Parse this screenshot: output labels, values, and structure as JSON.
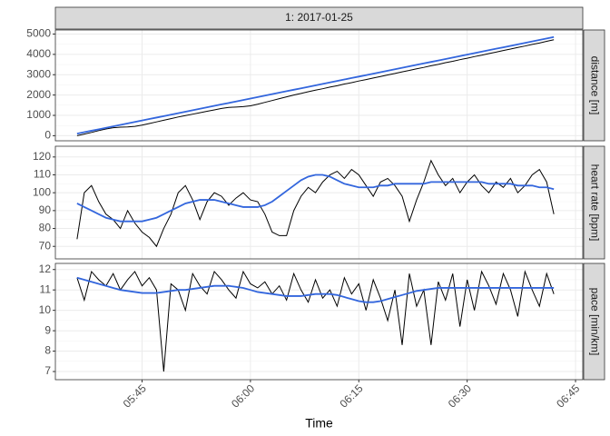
{
  "chart_data": [
    {
      "type": "line",
      "title": "1: 2017-01-25",
      "ylabel": "distance [m]",
      "x": [
        "05:36",
        "05:37",
        "05:38",
        "05:39",
        "05:40",
        "05:41",
        "05:42",
        "05:43",
        "05:44",
        "05:45",
        "05:46",
        "05:47",
        "05:48",
        "05:49",
        "05:50",
        "05:51",
        "05:52",
        "05:53",
        "05:54",
        "05:55",
        "05:56",
        "05:57",
        "05:58",
        "05:59",
        "06:00",
        "06:01",
        "06:02",
        "06:03",
        "06:04",
        "06:05",
        "06:06",
        "06:07",
        "06:08",
        "06:09",
        "06:10",
        "06:11",
        "06:12",
        "06:13",
        "06:14",
        "06:15",
        "06:16",
        "06:17",
        "06:18",
        "06:19",
        "06:20",
        "06:21",
        "06:22",
        "06:23",
        "06:24",
        "06:25",
        "06:26",
        "06:27",
        "06:28",
        "06:29",
        "06:30",
        "06:31",
        "06:32",
        "06:33",
        "06:34",
        "06:35",
        "06:36",
        "06:37",
        "06:38",
        "06:39",
        "06:40",
        "06:41",
        "06:42"
      ],
      "series": [
        {
          "color": "#000000",
          "values": [
            0,
            80,
            160,
            250,
            330,
            390,
            420,
            430,
            460,
            520,
            600,
            680,
            760,
            840,
            920,
            990,
            1060,
            1130,
            1200,
            1270,
            1340,
            1390,
            1410,
            1430,
            1470,
            1550,
            1640,
            1730,
            1820,
            1910,
            2000,
            2080,
            2160,
            2240,
            2310,
            2390,
            2460,
            2540,
            2610,
            2690,
            2760,
            2840,
            2910,
            2990,
            3060,
            3140,
            3210,
            3290,
            3360,
            3440,
            3510,
            3590,
            3660,
            3740,
            3810,
            3890,
            3960,
            4040,
            4110,
            4190,
            4260,
            4340,
            4410,
            4490,
            4560,
            4640,
            4720
          ]
        },
        {
          "color": "#3366dd",
          "values": [
            100,
            172,
            244,
            316,
            388,
            460,
            532,
            604,
            676,
            748,
            820,
            892,
            964,
            1036,
            1108,
            1180,
            1252,
            1324,
            1396,
            1468,
            1540,
            1612,
            1684,
            1756,
            1828,
            1900,
            1972,
            2044,
            2116,
            2188,
            2260,
            2332,
            2404,
            2476,
            2548,
            2620,
            2692,
            2764,
            2836,
            2908,
            2980,
            3052,
            3124,
            3196,
            3268,
            3340,
            3412,
            3484,
            3556,
            3628,
            3700,
            3772,
            3844,
            3916,
            3988,
            4060,
            4132,
            4204,
            4276,
            4348,
            4420,
            4492,
            4564,
            4636,
            4708,
            4780,
            4852
          ]
        }
      ],
      "xlim": [
        "05:33",
        "06:46"
      ],
      "xticks": [
        "05:45",
        "06:00",
        "06:15",
        "06:30",
        "06:45"
      ],
      "ylim": [
        -250,
        5200
      ],
      "yticks": [
        0,
        1000,
        2000,
        3000,
        4000,
        5000
      ],
      "grid": true
    },
    {
      "type": "line",
      "ylabel": "heart rate [bpm]",
      "x": [
        "05:36",
        "05:37",
        "05:38",
        "05:39",
        "05:40",
        "05:41",
        "05:42",
        "05:43",
        "05:44",
        "05:45",
        "05:46",
        "05:47",
        "05:48",
        "05:49",
        "05:50",
        "05:51",
        "05:52",
        "05:53",
        "05:54",
        "05:55",
        "05:56",
        "05:57",
        "05:58",
        "05:59",
        "06:00",
        "06:01",
        "06:02",
        "06:03",
        "06:04",
        "06:05",
        "06:06",
        "06:07",
        "06:08",
        "06:09",
        "06:10",
        "06:11",
        "06:12",
        "06:13",
        "06:14",
        "06:15",
        "06:16",
        "06:17",
        "06:18",
        "06:19",
        "06:20",
        "06:21",
        "06:22",
        "06:23",
        "06:24",
        "06:25",
        "06:26",
        "06:27",
        "06:28",
        "06:29",
        "06:30",
        "06:31",
        "06:32",
        "06:33",
        "06:34",
        "06:35",
        "06:36",
        "06:37",
        "06:38",
        "06:39",
        "06:40",
        "06:41",
        "06:42"
      ],
      "series": [
        {
          "color": "#000000",
          "values": [
            74,
            100,
            104,
            95,
            88,
            85,
            80,
            90,
            83,
            78,
            75,
            70,
            80,
            88,
            100,
            104,
            96,
            85,
            95,
            100,
            98,
            93,
            97,
            100,
            96,
            95,
            88,
            78,
            76,
            76,
            90,
            98,
            103,
            100,
            106,
            110,
            112,
            108,
            113,
            110,
            104,
            98,
            106,
            108,
            104,
            98,
            84,
            96,
            106,
            118,
            110,
            104,
            108,
            100,
            106,
            110,
            104,
            100,
            106,
            103,
            108,
            100,
            104,
            110,
            113,
            106,
            88
          ]
        },
        {
          "color": "#3366dd",
          "values": [
            94,
            92,
            90,
            88,
            86,
            85,
            84,
            84,
            84,
            84,
            85,
            86,
            88,
            90,
            92,
            94,
            95,
            96,
            96,
            96,
            95,
            94,
            93,
            92,
            92,
            92,
            93,
            95,
            98,
            101,
            104,
            107,
            109,
            110,
            110,
            109,
            107,
            105,
            104,
            103,
            103,
            103,
            104,
            104,
            105,
            105,
            105,
            105,
            105,
            106,
            106,
            106,
            106,
            106,
            106,
            106,
            106,
            105,
            105,
            105,
            105,
            104,
            104,
            104,
            103,
            103,
            102
          ]
        }
      ],
      "xlim": [
        "05:33",
        "06:46"
      ],
      "xticks": [
        "05:45",
        "06:00",
        "06:15",
        "06:30",
        "06:45"
      ],
      "ylim": [
        63,
        126
      ],
      "yticks": [
        70,
        80,
        90,
        100,
        110,
        120
      ],
      "grid": true
    },
    {
      "type": "line",
      "ylabel": "pace [min/km]",
      "xlabel": "Time",
      "x": [
        "05:36",
        "05:37",
        "05:38",
        "05:39",
        "05:40",
        "05:41",
        "05:42",
        "05:43",
        "05:44",
        "05:45",
        "05:46",
        "05:47",
        "05:48",
        "05:49",
        "05:50",
        "05:51",
        "05:52",
        "05:53",
        "05:54",
        "05:55",
        "05:56",
        "05:57",
        "05:58",
        "05:59",
        "06:00",
        "06:01",
        "06:02",
        "06:03",
        "06:04",
        "06:05",
        "06:06",
        "06:07",
        "06:08",
        "06:09",
        "06:10",
        "06:11",
        "06:12",
        "06:13",
        "06:14",
        "06:15",
        "06:16",
        "06:17",
        "06:18",
        "06:19",
        "06:20",
        "06:21",
        "06:22",
        "06:23",
        "06:24",
        "06:25",
        "06:26",
        "06:27",
        "06:28",
        "06:29",
        "06:30",
        "06:31",
        "06:32",
        "06:33",
        "06:34",
        "06:35",
        "06:36",
        "06:37",
        "06:38",
        "06:39",
        "06:40",
        "06:41",
        "06:42"
      ],
      "series": [
        {
          "color": "#000000",
          "values": [
            11.6,
            10.5,
            11.9,
            11.5,
            11.2,
            11.8,
            11.0,
            11.5,
            11.9,
            11.2,
            11.6,
            11.0,
            7.0,
            11.3,
            11.0,
            10.0,
            11.8,
            11.2,
            10.8,
            11.9,
            11.5,
            11.0,
            10.6,
            11.9,
            11.3,
            11.1,
            11.4,
            10.8,
            11.2,
            10.5,
            11.8,
            11.0,
            10.4,
            11.5,
            10.6,
            11.0,
            10.2,
            11.6,
            10.8,
            11.3,
            10.0,
            11.5,
            10.6,
            9.5,
            11.0,
            8.3,
            11.8,
            10.2,
            11.0,
            8.3,
            11.4,
            10.5,
            11.8,
            9.2,
            11.5,
            10.0,
            11.9,
            11.2,
            10.3,
            11.8,
            11.0,
            9.7,
            11.9,
            11.0,
            10.2,
            11.8,
            10.8
          ]
        },
        {
          "color": "#3366dd",
          "values": [
            11.6,
            11.5,
            11.4,
            11.3,
            11.2,
            11.1,
            11.0,
            10.95,
            10.9,
            10.85,
            10.85,
            10.85,
            10.9,
            10.95,
            11.0,
            11.0,
            11.05,
            11.1,
            11.15,
            11.2,
            11.2,
            11.2,
            11.15,
            11.1,
            11.0,
            10.9,
            10.85,
            10.8,
            10.75,
            10.7,
            10.7,
            10.7,
            10.75,
            10.8,
            10.8,
            10.8,
            10.75,
            10.65,
            10.55,
            10.45,
            10.4,
            10.4,
            10.45,
            10.55,
            10.65,
            10.75,
            10.85,
            10.95,
            11.0,
            11.05,
            11.1,
            11.1,
            11.1,
            11.1,
            11.1,
            11.1,
            11.1,
            11.1,
            11.1,
            11.1,
            11.1,
            11.1,
            11.1,
            11.1,
            11.1,
            11.1,
            11.1
          ]
        }
      ],
      "xlim": [
        "05:33",
        "06:46"
      ],
      "xticks": [
        "05:45",
        "06:00",
        "06:15",
        "06:30",
        "06:45"
      ],
      "ylim": [
        6.6,
        12.3
      ],
      "yticks": [
        7,
        8,
        9,
        10,
        11,
        12
      ],
      "grid": true
    }
  ]
}
